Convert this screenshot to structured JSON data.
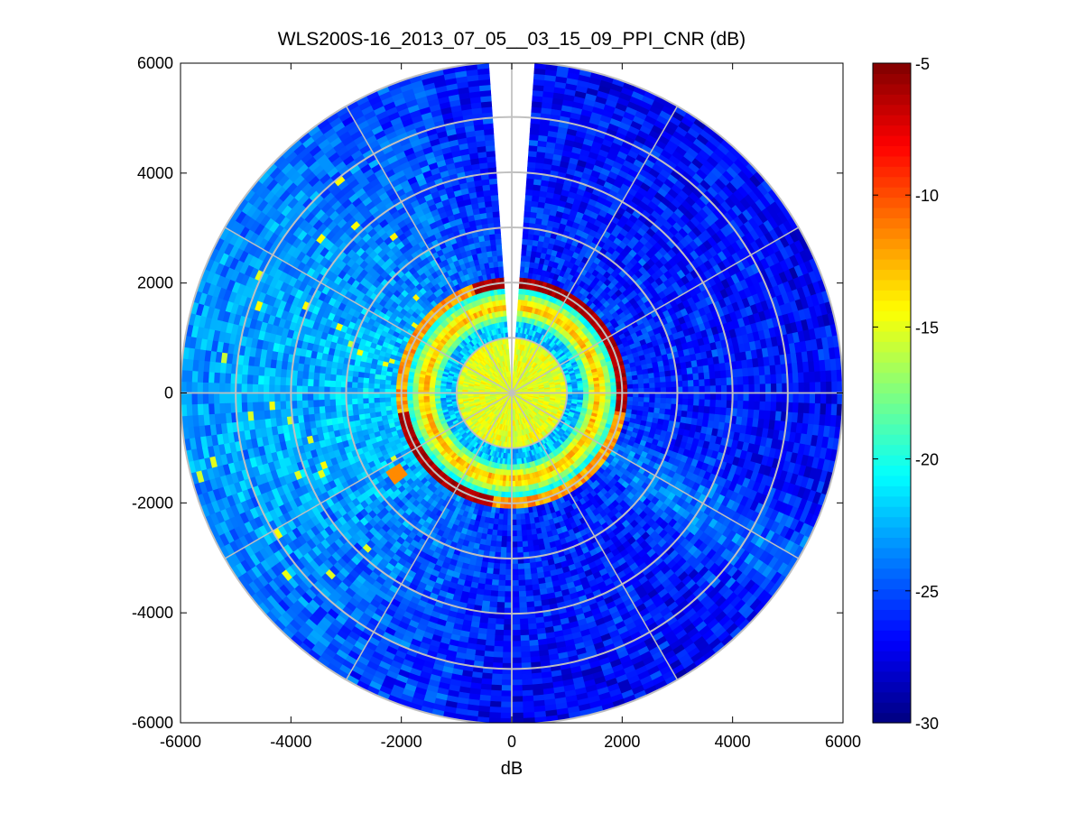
{
  "chart_data": {
    "type": "heatmap",
    "subtype": "polar-ppi",
    "title": "WLS200S-16_2013_07_05__03_15_09_PPI_CNR (dB)",
    "xlabel": "dB",
    "ylabel": "",
    "xlim": [
      -6000,
      6000
    ],
    "ylim": [
      -6000,
      6000
    ],
    "xticks": [
      -6000,
      -4000,
      -2000,
      0,
      2000,
      4000,
      6000
    ],
    "yticks": [
      -6000,
      -4000,
      -2000,
      0,
      2000,
      4000,
      6000
    ],
    "max_range": 6000,
    "range_rings": [
      1000,
      2000,
      3000,
      4000,
      5000,
      6000
    ],
    "spokes_every_deg": 30,
    "grid": true,
    "missing_sector_deg": [
      -4,
      4
    ],
    "colormap": "jet",
    "colorbar": {
      "min": -30,
      "max": -5,
      "ticks": [
        -30,
        -25,
        -20,
        -15,
        -10,
        -5
      ],
      "position": "right"
    },
    "field_description": {
      "inner_disk": {
        "r": [
          0,
          1000
        ],
        "cnr": -15
      },
      "dark_ring": {
        "r": [
          1000,
          1300
        ],
        "cnr": -25
      },
      "bright_ring": {
        "r": [
          1300,
          1850
        ],
        "cnr": -13
      },
      "saturated_edge": {
        "r": [
          1850,
          2100
        ],
        "cnr": -6,
        "azimuth_sectors_deg": [
          [
            -20,
            100
          ],
          [
            190,
            260
          ]
        ]
      },
      "outer_base": {
        "r": [
          2100,
          6000
        ],
        "cnr_west": -22,
        "cnr_east": -27
      }
    }
  }
}
